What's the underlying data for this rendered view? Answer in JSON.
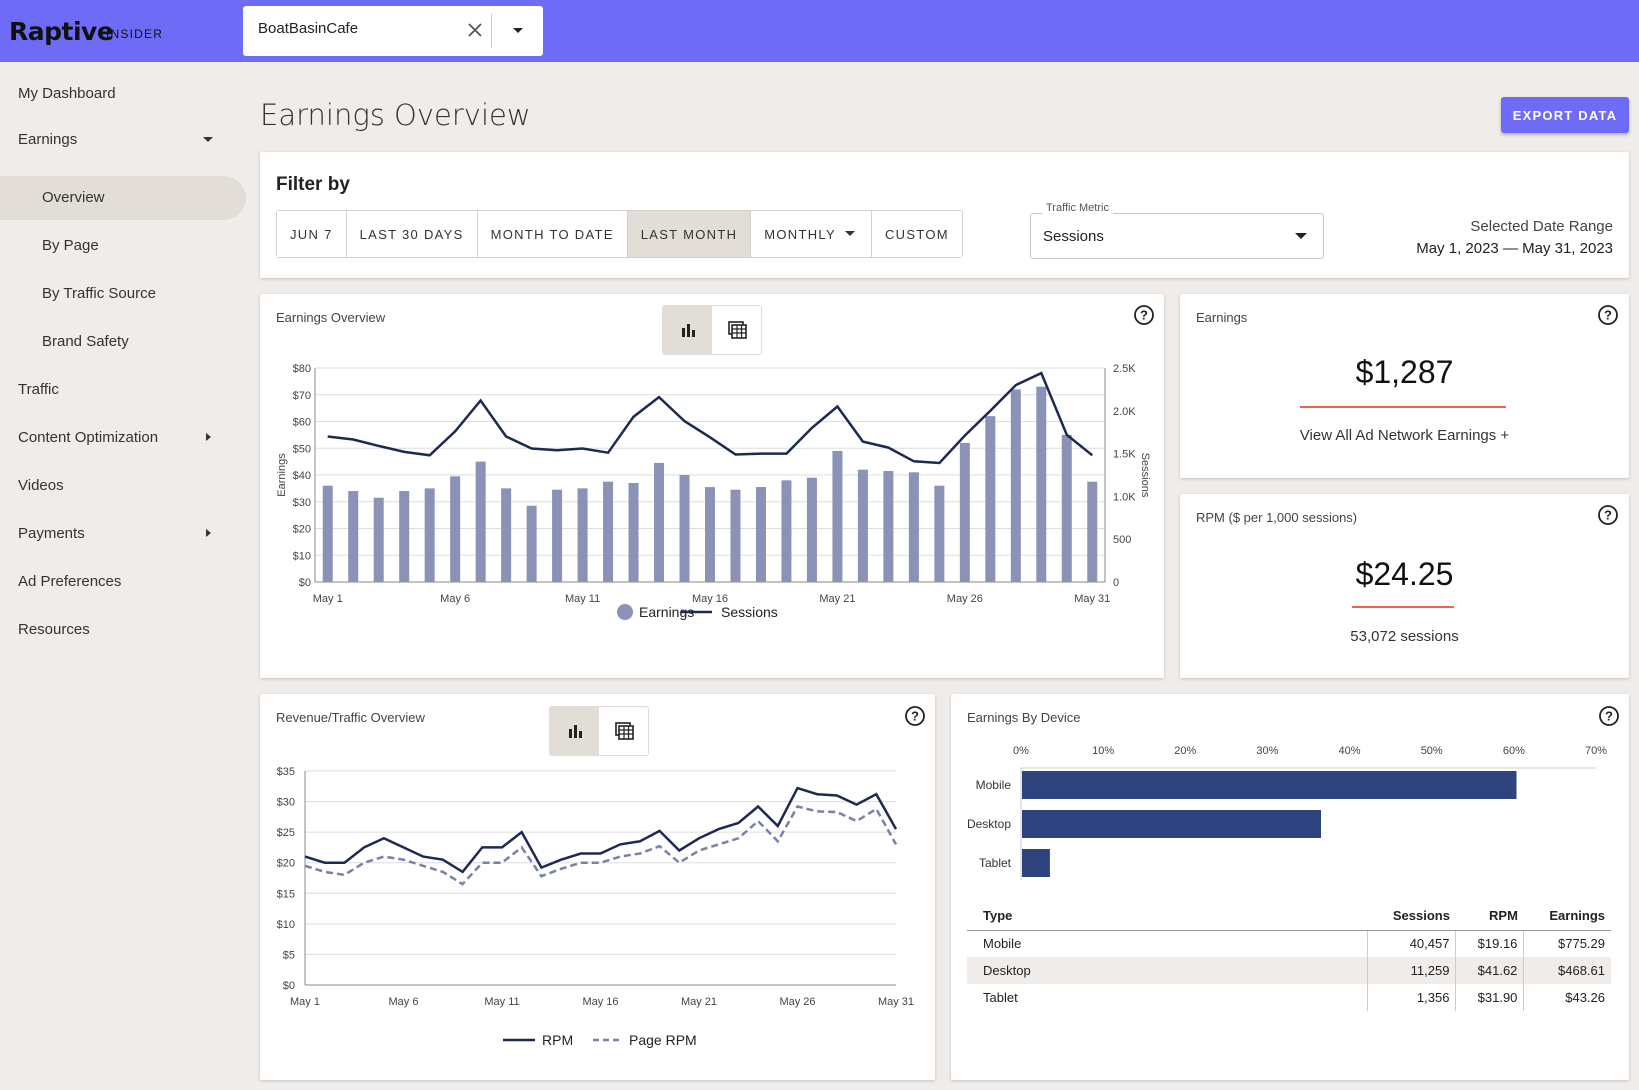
{
  "header": {
    "logo": "Raptive",
    "logo_sub": "INSIDER",
    "site_name": "BoatBasinCafe"
  },
  "sidebar": {
    "items": [
      {
        "label": "My Dashboard"
      },
      {
        "label": "Earnings"
      },
      {
        "label": "Overview"
      },
      {
        "label": "By Page"
      },
      {
        "label": "By Traffic Source"
      },
      {
        "label": "Brand Safety"
      },
      {
        "label": "Traffic"
      },
      {
        "label": "Content Optimization"
      },
      {
        "label": "Videos"
      },
      {
        "label": "Payments"
      },
      {
        "label": "Ad Preferences"
      },
      {
        "label": "Resources"
      }
    ]
  },
  "main": {
    "title": "Earnings Overview",
    "export_label": "EXPORT DATA"
  },
  "filter": {
    "title": "Filter by",
    "buttons": [
      "JUN 7",
      "LAST 30 DAYS",
      "MONTH TO DATE",
      "LAST MONTH",
      "MONTHLY",
      "CUSTOM"
    ],
    "selected": "LAST MONTH",
    "traffic_metric_label": "Traffic Metric",
    "traffic_metric_value": "Sessions",
    "date_range_label": "Selected Date Range",
    "date_range_value": "May 1, 2023 — May 31, 2023"
  },
  "earnings_card": {
    "title": "Earnings",
    "value": "$1,287",
    "link": "View All Ad Network Earnings +"
  },
  "rpm_card": {
    "title": "RPM ($ per 1,000 sessions)",
    "value": "$24.25",
    "sessions": "53,072 sessions"
  },
  "chart_data": [
    {
      "type": "bar",
      "title": "Earnings Overview",
      "x": [
        "May 1",
        "May 2",
        "May 3",
        "May 4",
        "May 5",
        "May 6",
        "May 7",
        "May 8",
        "May 9",
        "May 10",
        "May 11",
        "May 12",
        "May 13",
        "May 14",
        "May 15",
        "May 16",
        "May 17",
        "May 18",
        "May 19",
        "May 20",
        "May 21",
        "May 22",
        "May 23",
        "May 24",
        "May 25",
        "May 26",
        "May 27",
        "May 28",
        "May 29",
        "May 30",
        "May 31"
      ],
      "x_tick_labels": [
        "May 1",
        "May 6",
        "May 11",
        "May 16",
        "May 21",
        "May 26",
        "May 31"
      ],
      "ylabel": "Earnings",
      "y2label": "Sessions",
      "ylim": [
        0,
        80
      ],
      "y2lim": [
        0,
        2500
      ],
      "y_ticks": [
        "$0",
        "$10",
        "$20",
        "$30",
        "$40",
        "$50",
        "$60",
        "$70",
        "$80"
      ],
      "y2_ticks": [
        "0",
        "500",
        "1.0K",
        "1.5K",
        "2.0K",
        "2.5K"
      ],
      "series": [
        {
          "name": "Earnings",
          "kind": "bar",
          "color": "#8a92b8",
          "values": [
            36,
            34,
            31.5,
            34,
            35,
            39.5,
            45,
            35,
            28.5,
            34.5,
            35,
            37.5,
            37,
            44.5,
            40,
            35.5,
            34.5,
            35.5,
            38,
            39,
            49,
            42,
            41.5,
            41,
            36,
            52,
            62,
            72,
            73,
            55,
            37.5
          ]
        },
        {
          "name": "Sessions",
          "kind": "line",
          "color": "#1c2951",
          "values": [
            1700,
            1665,
            1590,
            1520,
            1480,
            1760,
            2120,
            1700,
            1560,
            1540,
            1560,
            1510,
            1930,
            2160,
            1880,
            1690,
            1490,
            1500,
            1500,
            1800,
            2050,
            1640,
            1570,
            1410,
            1390,
            1710,
            2000,
            2300,
            2440,
            1720,
            1480
          ]
        }
      ],
      "legend": "bottom"
    },
    {
      "type": "line",
      "title": "Revenue/Traffic Overview",
      "x": [
        "May 1",
        "May 2",
        "May 3",
        "May 4",
        "May 5",
        "May 6",
        "May 7",
        "May 8",
        "May 9",
        "May 10",
        "May 11",
        "May 12",
        "May 13",
        "May 14",
        "May 15",
        "May 16",
        "May 17",
        "May 18",
        "May 19",
        "May 20",
        "May 21",
        "May 22",
        "May 23",
        "May 24",
        "May 25",
        "May 26",
        "May 27",
        "May 28",
        "May 29",
        "May 30",
        "May 31"
      ],
      "x_tick_labels": [
        "May 1",
        "May 6",
        "May 11",
        "May 16",
        "May 21",
        "May 26",
        "May 31"
      ],
      "ylim": [
        0,
        35
      ],
      "y_ticks": [
        "$0",
        "$5",
        "$10",
        "$15",
        "$20",
        "$25",
        "$30",
        "$35"
      ],
      "series": [
        {
          "name": "RPM",
          "color": "#1c2951",
          "dash": false,
          "values": [
            21,
            20,
            20,
            22.5,
            24,
            22.5,
            21,
            20.5,
            18.5,
            22.5,
            22.5,
            25,
            19.2,
            20.5,
            21.5,
            21.5,
            23,
            23.5,
            25.2,
            22,
            24,
            25.5,
            26.5,
            29.2,
            26,
            32.2,
            31.2,
            31,
            29.5,
            31.2,
            25.5
          ]
        },
        {
          "name": "Page RPM",
          "color": "#7a81a8",
          "dash": true,
          "values": [
            19.5,
            18.5,
            18,
            20,
            21,
            20.5,
            19.5,
            18.5,
            16.5,
            20,
            20,
            22.5,
            17.8,
            19,
            20,
            20,
            21,
            21.5,
            22.7,
            20,
            22,
            23,
            24,
            26.8,
            23.5,
            29.2,
            28.4,
            28.3,
            26.8,
            28.8,
            23
          ]
        }
      ],
      "legend": "bottom"
    },
    {
      "type": "bar",
      "orientation": "horizontal",
      "title": "Earnings By Device",
      "categories": [
        "Mobile",
        "Desktop",
        "Tablet"
      ],
      "values": [
        60.2,
        36.4,
        3.4
      ],
      "x_ticks": [
        "0%",
        "10%",
        "20%",
        "30%",
        "40%",
        "50%",
        "60%",
        "70%"
      ],
      "xlim": [
        0,
        70
      ],
      "color": "#2f447f"
    }
  ],
  "device_table": {
    "headers": [
      "Type",
      "Sessions",
      "RPM",
      "Earnings"
    ],
    "rows": [
      [
        "Mobile",
        "40,457",
        "$19.16",
        "$775.29"
      ],
      [
        "Desktop",
        "11,259",
        "$41.62",
        "$468.61"
      ],
      [
        "Tablet",
        "1,356",
        "$31.90",
        "$43.26"
      ]
    ]
  }
}
